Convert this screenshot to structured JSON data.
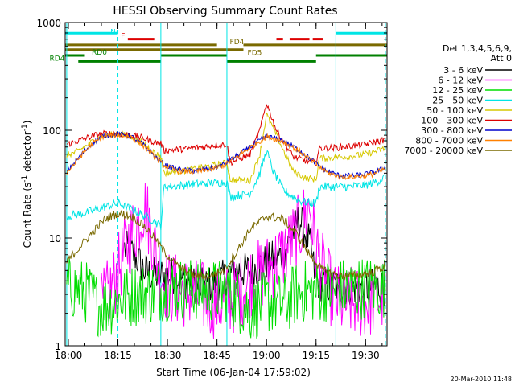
{
  "chart_data": {
    "type": "line",
    "title": "HESSI Observing Summary Count Rates",
    "xlabel": "Start Time (06-Jan-04 17:59:02)",
    "ylabel_main": "Count Rate (s",
    "ylabel_sup1": "-1",
    "ylabel_mid": " detector",
    "ylabel_sup2": "-1",
    "ylabel_end": ")",
    "yscale": "log",
    "ylim": [
      1,
      1000
    ],
    "xlim": [
      "17:59:02",
      "19:36:30"
    ],
    "x_ticks": [
      "18:00",
      "18:15",
      "18:30",
      "18:45",
      "19:00",
      "19:15",
      "19:30"
    ],
    "y_ticks": [
      "1",
      "10",
      "100",
      "1000"
    ],
    "footer_date": "20-Mar-2010 11:48",
    "legend": {
      "header1": "Det 1,3,4,5,6,9,",
      "header2": "Att 0",
      "entries": [
        {
          "label": "3 - 6 keV",
          "color": "#000000"
        },
        {
          "label": "6 - 12 keV",
          "color": "#ff00ff"
        },
        {
          "label": "12 - 25 keV",
          "color": "#00dd00"
        },
        {
          "label": "25 - 50 keV",
          "color": "#00e5e5"
        },
        {
          "label": "50 - 100 keV",
          "color": "#d6c800"
        },
        {
          "label": "100 - 300 keV",
          "color": "#dd0000"
        },
        {
          "label": "300 - 800 keV",
          "color": "#0000cc"
        },
        {
          "label": "800 - 7000 keV",
          "color": "#ff8000"
        },
        {
          "label": "7000 - 20000 keV",
          "color": "#7a6a00"
        }
      ]
    },
    "flags": [
      {
        "label": "N",
        "color": "#00e5e5",
        "segments": [
          [
            "17:59:02",
            "18:15"
          ],
          [
            "19:21",
            "19:36:30"
          ]
        ],
        "level": 1.0
      },
      {
        "label": "F",
        "color": "#dd0000",
        "segments": [
          [
            "18:18",
            "18:26"
          ],
          [
            "19:03",
            "19:05"
          ],
          [
            "19:07",
            "19:13"
          ],
          [
            "19:14",
            "19:17"
          ]
        ],
        "level": 2.0
      },
      {
        "label": "FD4",
        "color": "#7a6a00",
        "segments": [
          [
            "17:59:02",
            "18:45"
          ],
          [
            "18:53",
            "19:36:30"
          ]
        ],
        "level": 3.0
      },
      {
        "label": "FD5",
        "color": "#7a6a00",
        "segments": [
          [
            "17:59:02",
            "18:53"
          ]
        ],
        "level": 3.8
      },
      {
        "label": "RD0",
        "color": "#008000",
        "segments": [
          [
            "17:59:02",
            "18:05"
          ],
          [
            "18:28",
            "18:48"
          ],
          [
            "19:15",
            "19:36:30"
          ]
        ],
        "level": 4.8
      },
      {
        "label": "RD4",
        "color": "#008000",
        "segments": [
          [
            "18:03",
            "18:28"
          ],
          [
            "18:48",
            "19:15"
          ]
        ],
        "level": 5.8
      }
    ],
    "night_boundaries": [
      "18:15",
      "19:36"
    ],
    "saa_boundaries": [
      "17:59:30",
      "18:28",
      "18:48",
      "19:21"
    ],
    "series": [
      {
        "name": "3 - 6 keV",
        "color": "#000000",
        "noise": 0.18,
        "x": [
          "18:17",
          "18:20",
          "18:23",
          "18:26",
          "18:29",
          "18:32",
          "18:40",
          "18:46",
          "18:50",
          "18:55",
          "19:00",
          "19:05",
          "19:10",
          "19:13",
          "19:15",
          "19:20",
          "19:25",
          "19:30",
          "19:36"
        ],
        "y": [
          8,
          7,
          5,
          4.5,
          4.5,
          4.5,
          3.5,
          4,
          5,
          5,
          6,
          7,
          15,
          9,
          4,
          3.5,
          3.5,
          3.5,
          3.5
        ]
      },
      {
        "name": "6 - 12 keV",
        "color": "#ff00ff",
        "noise": 0.35,
        "x": [
          "18:10",
          "18:14",
          "18:18",
          "18:21",
          "18:23",
          "18:25",
          "18:27",
          "18:30",
          "18:38",
          "18:45",
          "18:50",
          "18:55",
          "19:00",
          "19:05",
          "19:10",
          "19:13",
          "19:15",
          "19:18",
          "19:22",
          "19:26",
          "19:30",
          "19:36"
        ],
        "y": [
          2.2,
          4,
          9,
          14,
          20,
          12,
          6,
          3.5,
          3,
          2.5,
          2.8,
          4,
          5,
          7,
          12,
          20,
          8,
          4,
          2.5,
          2.5,
          2.5,
          3
        ]
      },
      {
        "name": "12 - 25 keV",
        "color": "#00dd00",
        "noise": 0.3,
        "x": [
          "17:59:30",
          "18:05",
          "18:10",
          "18:15",
          "18:20",
          "18:25",
          "18:28",
          "18:32",
          "18:40",
          "18:48",
          "18:55",
          "19:00",
          "19:05",
          "19:10",
          "19:15",
          "19:20",
          "19:25",
          "19:30",
          "19:36"
        ],
        "y": [
          3.5,
          3.2,
          2.3,
          2.6,
          3,
          3.1,
          3.3,
          3.4,
          3.3,
          3.2,
          2.1,
          2.6,
          2.4,
          3.2,
          3.2,
          3.3,
          3.4,
          3.5,
          3.5
        ]
      },
      {
        "name": "25 - 50 keV",
        "color": "#00e5e5",
        "noise": 0.04,
        "x": [
          "17:59:30",
          "18:05",
          "18:10",
          "18:15",
          "18:20",
          "18:25",
          "18:28",
          "18:29",
          "18:35",
          "18:40",
          "18:48",
          "18:49",
          "18:55",
          "18:58",
          "19:00",
          "19:02",
          "19:05",
          "19:10",
          "19:15",
          "19:16",
          "19:21",
          "19:25",
          "19:30",
          "19:34",
          "19:36"
        ],
        "y": [
          16,
          17,
          19,
          21,
          18,
          15,
          13,
          30,
          31,
          32,
          33,
          24,
          26,
          40,
          65,
          42,
          28,
          22,
          21,
          30,
          30,
          30,
          31,
          34,
          37
        ]
      },
      {
        "name": "50 - 100 keV",
        "color": "#d6c800",
        "noise": 0.03,
        "x": [
          "17:59:30",
          "18:02",
          "18:05",
          "18:08",
          "18:11",
          "18:15",
          "18:19",
          "18:23",
          "18:26",
          "18:28",
          "18:29",
          "18:35",
          "18:40",
          "18:45",
          "18:48",
          "18:49",
          "18:55",
          "18:58",
          "19:00",
          "19:03",
          "19:08",
          "19:12",
          "19:15",
          "19:16",
          "19:21",
          "19:25",
          "19:30",
          "19:36"
        ],
        "y": [
          59,
          62,
          70,
          82,
          90,
          92,
          88,
          75,
          62,
          57,
          40,
          42,
          45,
          48,
          50,
          35,
          34,
          60,
          140,
          90,
          42,
          36,
          35,
          55,
          56,
          57,
          60,
          68
        ]
      },
      {
        "name": "100 - 300 keV",
        "color": "#dd0000",
        "noise": 0.03,
        "x": [
          "17:59:30",
          "18:02",
          "18:05",
          "18:08",
          "18:11",
          "18:15",
          "18:19",
          "18:23",
          "18:26",
          "18:28",
          "18:29",
          "18:35",
          "18:40",
          "18:45",
          "18:48",
          "18:49",
          "18:55",
          "18:58",
          "19:00",
          "19:03",
          "19:08",
          "19:12",
          "19:15",
          "19:16",
          "19:21",
          "19:25",
          "19:30",
          "19:36"
        ],
        "y": [
          74,
          78,
          84,
          90,
          93,
          93,
          90,
          84,
          78,
          76,
          65,
          67,
          70,
          73,
          74,
          50,
          60,
          100,
          180,
          100,
          57,
          52,
          50,
          68,
          69,
          71,
          74,
          82
        ]
      },
      {
        "name": "300 - 800 keV",
        "color": "#0000cc",
        "noise": 0.025,
        "x": [
          "17:59:30",
          "18:03",
          "18:07",
          "18:11",
          "18:15",
          "18:19",
          "18:23",
          "18:26",
          "18:29",
          "18:33",
          "18:38",
          "18:43",
          "18:47",
          "18:50",
          "18:55",
          "19:00",
          "19:05",
          "19:10",
          "19:14",
          "19:18",
          "19:22",
          "19:27",
          "19:32",
          "19:36"
        ],
        "y": [
          41,
          55,
          75,
          90,
          92,
          88,
          72,
          58,
          48,
          43,
          42,
          44,
          48,
          55,
          70,
          88,
          80,
          65,
          52,
          42,
          38,
          38,
          40,
          45
        ]
      },
      {
        "name": "800 - 7000 keV",
        "color": "#ff8000",
        "noise": 0.025,
        "x": [
          "17:59:30",
          "18:03",
          "18:07",
          "18:11",
          "18:15",
          "18:19",
          "18:23",
          "18:26",
          "18:29",
          "18:33",
          "18:38",
          "18:43",
          "18:47",
          "18:50",
          "18:55",
          "19:00",
          "19:05",
          "19:10",
          "19:14",
          "19:18",
          "19:22",
          "19:27",
          "19:32",
          "19:36"
        ],
        "y": [
          40,
          54,
          74,
          89,
          91,
          87,
          71,
          57,
          47,
          42,
          41,
          43,
          47,
          54,
          69,
          87,
          79,
          64,
          51,
          41,
          37,
          37,
          39,
          44
        ]
      },
      {
        "name": "7000 - 20000 keV",
        "color": "#7a6a00",
        "noise": 0.04,
        "x": [
          "17:59:30",
          "18:03",
          "18:07",
          "18:11",
          "18:15",
          "18:19",
          "18:23",
          "18:26",
          "18:29",
          "18:33",
          "18:38",
          "18:43",
          "18:47",
          "18:51",
          "18:55",
          "19:00",
          "19:05",
          "19:09",
          "19:13",
          "19:17",
          "19:22",
          "19:27",
          "19:32",
          "19:36"
        ],
        "y": [
          6,
          8,
          11,
          15,
          17,
          16,
          13,
          10,
          7.5,
          5.5,
          4.5,
          4.5,
          5,
          7.5,
          12,
          16,
          15,
          11,
          7,
          5,
          4.5,
          4.5,
          4.8,
          5.5
        ]
      }
    ]
  }
}
